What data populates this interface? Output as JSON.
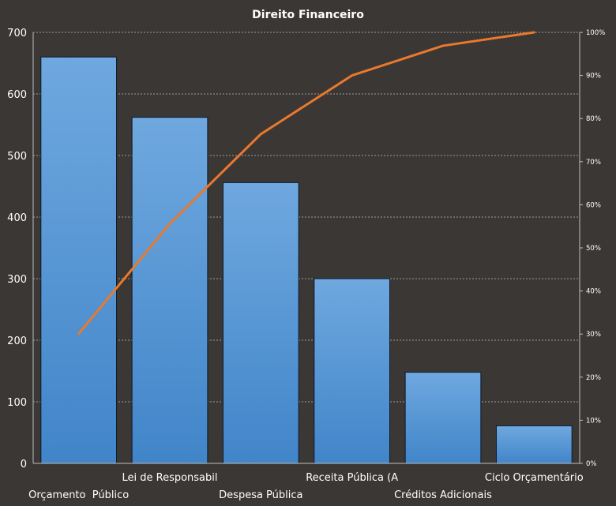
{
  "chart_data": {
    "type": "bar",
    "title": "Direito  Financeiro",
    "categories": [
      "Orçamento  Público",
      "Lei de Responsabil",
      "Despesa Pública",
      "Receita Pública (A",
      "Créditos Adicionais",
      "Ciclo Orçamentário"
    ],
    "series": [
      {
        "values": [
          660,
          562,
          456,
          300,
          148,
          61
        ]
      },
      {
        "values": [
          30.1,
          55.6,
          76.4,
          90.0,
          96.9,
          100
        ]
      }
    ],
    "y_ticks": [
      "0",
      "100",
      "200",
      "300",
      "400",
      "500",
      "600",
      "700"
    ],
    "y2_ticks": [
      "0%",
      "10%",
      "20%",
      "30%",
      "40%",
      "50%",
      "60%",
      "70%",
      "80%",
      "90%",
      "100%"
    ],
    "ylim": [
      0,
      700
    ],
    "y2lim": [
      0,
      100
    ],
    "grid": "horizontal dashed",
    "colors": {
      "background": "#3b3735",
      "bar_top": "#6fa8df",
      "bar_bottom": "#4185c9",
      "bar_edge": "#0d1a2a",
      "line": "#e9792c",
      "text": "#ffffff",
      "grid": "#bfbfbf"
    }
  }
}
